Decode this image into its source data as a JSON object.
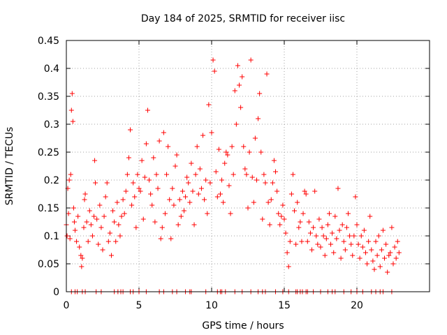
{
  "chart_data": {
    "type": "scatter",
    "title": "Day 184 of 2025, SRMTID for receiver iisc",
    "xlabel": "GPS time / hours",
    "ylabel": "SRMTID / TECUs",
    "xlim": [
      0,
      25
    ],
    "ylim": [
      0,
      0.45
    ],
    "x_ticks": [
      0,
      5,
      10,
      15,
      20
    ],
    "x_tick_labels": [
      "0",
      "5",
      "10",
      "15",
      "20"
    ],
    "y_ticks": [
      0,
      0.05,
      0.1,
      0.15,
      0.2,
      0.25,
      0.3,
      0.35,
      0.4,
      0.45
    ],
    "y_tick_labels": [
      "0",
      "0.05",
      "0.1",
      "0.15",
      "0.2",
      "0.25",
      "0.3",
      "0.35",
      "0.4",
      "0.45"
    ],
    "grid": true,
    "marker": "plus",
    "color": "#ff0000",
    "series": [
      {
        "name": "SRMTID",
        "points": [
          [
            0.0,
            0.12
          ],
          [
            0.05,
            0.1
          ],
          [
            0.1,
            0.185
          ],
          [
            0.15,
            0.14
          ],
          [
            0.2,
            0.2
          ],
          [
            0.25,
            0.095
          ],
          [
            0.3,
            0.21
          ],
          [
            0.35,
            0.325
          ],
          [
            0.4,
            0.355
          ],
          [
            0.45,
            0.305
          ],
          [
            0.5,
            0.15
          ],
          [
            0.55,
            0.125
          ],
          [
            0.6,
            0.11
          ],
          [
            0.7,
            0.09
          ],
          [
            0.8,
            0.135
          ],
          [
            0.9,
            0.08
          ],
          [
            1.0,
            0.065
          ],
          [
            1.05,
            0.045
          ],
          [
            1.1,
            0.06
          ],
          [
            1.2,
            0.115
          ],
          [
            1.25,
            0.165
          ],
          [
            1.3,
            0.175
          ],
          [
            1.4,
            0.125
          ],
          [
            1.5,
            0.09
          ],
          [
            1.6,
            0.145
          ],
          [
            1.7,
            0.12
          ],
          [
            1.8,
            0.1
          ],
          [
            1.9,
            0.135
          ],
          [
            1.95,
            0.235
          ],
          [
            2.0,
            0.195
          ],
          [
            2.1,
            0.13
          ],
          [
            2.2,
            0.085
          ],
          [
            2.3,
            0.155
          ],
          [
            2.4,
            0.115
          ],
          [
            2.5,
            0.075
          ],
          [
            2.6,
            0.135
          ],
          [
            2.7,
            0.17
          ],
          [
            2.8,
            0.195
          ],
          [
            2.9,
            0.09
          ],
          [
            3.0,
            0.105
          ],
          [
            3.1,
            0.065
          ],
          [
            3.2,
            0.145
          ],
          [
            3.3,
            0.125
          ],
          [
            3.4,
            0.09
          ],
          [
            3.5,
            0.16
          ],
          [
            3.6,
            0.12
          ],
          [
            3.7,
            0.1
          ],
          [
            3.8,
            0.135
          ],
          [
            3.9,
            0.165
          ],
          [
            4.0,
            0.14
          ],
          [
            4.1,
            0.18
          ],
          [
            4.2,
            0.21
          ],
          [
            4.3,
            0.24
          ],
          [
            4.4,
            0.29
          ],
          [
            4.5,
            0.155
          ],
          [
            4.6,
            0.195
          ],
          [
            4.7,
            0.17
          ],
          [
            4.8,
            0.115
          ],
          [
            4.9,
            0.21
          ],
          [
            5.0,
            0.185
          ],
          [
            5.1,
            0.18
          ],
          [
            5.2,
            0.235
          ],
          [
            5.3,
            0.13
          ],
          [
            5.4,
            0.205
          ],
          [
            5.5,
            0.265
          ],
          [
            5.6,
            0.325
          ],
          [
            5.7,
            0.2
          ],
          [
            5.8,
            0.175
          ],
          [
            5.9,
            0.155
          ],
          [
            6.0,
            0.24
          ],
          [
            6.1,
            0.125
          ],
          [
            6.2,
            0.21
          ],
          [
            6.3,
            0.185
          ],
          [
            6.4,
            0.27
          ],
          [
            6.5,
            0.095
          ],
          [
            6.6,
            0.115
          ],
          [
            6.7,
            0.285
          ],
          [
            6.8,
            0.14
          ],
          [
            6.9,
            0.21
          ],
          [
            7.0,
            0.26
          ],
          [
            7.1,
            0.165
          ],
          [
            7.2,
            0.095
          ],
          [
            7.3,
            0.185
          ],
          [
            7.4,
            0.155
          ],
          [
            7.5,
            0.225
          ],
          [
            7.6,
            0.245
          ],
          [
            7.7,
            0.12
          ],
          [
            7.8,
            0.165
          ],
          [
            7.9,
            0.135
          ],
          [
            8.0,
            0.18
          ],
          [
            8.1,
            0.145
          ],
          [
            8.2,
            0.17
          ],
          [
            8.3,
            0.205
          ],
          [
            8.4,
            0.195
          ],
          [
            8.5,
            0.16
          ],
          [
            8.6,
            0.23
          ],
          [
            8.7,
            0.18
          ],
          [
            8.8,
            0.12
          ],
          [
            8.9,
            0.21
          ],
          [
            9.0,
            0.26
          ],
          [
            9.1,
            0.175
          ],
          [
            9.2,
            0.22
          ],
          [
            9.3,
            0.185
          ],
          [
            9.4,
            0.28
          ],
          [
            9.5,
            0.165
          ],
          [
            9.6,
            0.2
          ],
          [
            9.7,
            0.14
          ],
          [
            9.8,
            0.335
          ],
          [
            9.9,
            0.195
          ],
          [
            10.0,
            0.285
          ],
          [
            10.1,
            0.415
          ],
          [
            10.2,
            0.395
          ],
          [
            10.3,
            0.215
          ],
          [
            10.4,
            0.17
          ],
          [
            10.5,
            0.255
          ],
          [
            10.6,
            0.175
          ],
          [
            10.7,
            0.2
          ],
          [
            10.8,
            0.16
          ],
          [
            10.9,
            0.23
          ],
          [
            11.0,
            0.25
          ],
          [
            11.1,
            0.245
          ],
          [
            11.2,
            0.19
          ],
          [
            11.3,
            0.14
          ],
          [
            11.4,
            0.26
          ],
          [
            11.5,
            0.21
          ],
          [
            11.6,
            0.36
          ],
          [
            11.7,
            0.3
          ],
          [
            11.8,
            0.405
          ],
          [
            11.9,
            0.37
          ],
          [
            12.0,
            0.33
          ],
          [
            12.1,
            0.385
          ],
          [
            12.2,
            0.26
          ],
          [
            12.3,
            0.22
          ],
          [
            12.4,
            0.21
          ],
          [
            12.5,
            0.15
          ],
          [
            12.6,
            0.25
          ],
          [
            12.7,
            0.415
          ],
          [
            12.8,
            0.205
          ],
          [
            12.9,
            0.16
          ],
          [
            13.0,
            0.275
          ],
          [
            13.1,
            0.2
          ],
          [
            13.2,
            0.31
          ],
          [
            13.3,
            0.355
          ],
          [
            13.4,
            0.25
          ],
          [
            13.5,
            0.13
          ],
          [
            13.6,
            0.21
          ],
          [
            13.7,
            0.195
          ],
          [
            13.8,
            0.39
          ],
          [
            13.9,
            0.16
          ],
          [
            14.0,
            0.12
          ],
          [
            14.1,
            0.165
          ],
          [
            14.2,
            0.195
          ],
          [
            14.3,
            0.235
          ],
          [
            14.4,
            0.215
          ],
          [
            14.5,
            0.18
          ],
          [
            14.6,
            0.14
          ],
          [
            14.7,
            0.12
          ],
          [
            14.8,
            0.135
          ],
          [
            14.9,
            0.155
          ],
          [
            15.0,
            0.13
          ],
          [
            15.1,
            0.105
          ],
          [
            15.2,
            0.07
          ],
          [
            15.3,
            0.045
          ],
          [
            15.4,
            0.09
          ],
          [
            15.5,
            0.175
          ],
          [
            15.6,
            0.21
          ],
          [
            15.7,
            0.145
          ],
          [
            15.8,
            0.085
          ],
          [
            15.9,
            0.16
          ],
          [
            16.0,
            0.115
          ],
          [
            16.1,
            0.125
          ],
          [
            16.2,
            0.09
          ],
          [
            16.3,
            0.14
          ],
          [
            16.4,
            0.18
          ],
          [
            16.5,
            0.175
          ],
          [
            16.6,
            0.09
          ],
          [
            16.7,
            0.125
          ],
          [
            16.8,
            0.105
          ],
          [
            16.9,
            0.075
          ],
          [
            17.0,
            0.115
          ],
          [
            17.1,
            0.18
          ],
          [
            17.2,
            0.1
          ],
          [
            17.3,
            0.085
          ],
          [
            17.4,
            0.13
          ],
          [
            17.5,
            0.08
          ],
          [
            17.6,
            0.115
          ],
          [
            17.7,
            0.1
          ],
          [
            17.8,
            0.065
          ],
          [
            17.9,
            0.095
          ],
          [
            18.0,
            0.12
          ],
          [
            18.1,
            0.14
          ],
          [
            18.2,
            0.085
          ],
          [
            18.3,
            0.105
          ],
          [
            18.4,
            0.07
          ],
          [
            18.5,
            0.135
          ],
          [
            18.6,
            0.095
          ],
          [
            18.7,
            0.185
          ],
          [
            18.8,
            0.11
          ],
          [
            18.9,
            0.06
          ],
          [
            19.0,
            0.12
          ],
          [
            19.1,
            0.09
          ],
          [
            19.2,
            0.075
          ],
          [
            19.3,
            0.115
          ],
          [
            19.4,
            0.14
          ],
          [
            19.5,
            0.1
          ],
          [
            19.6,
            0.085
          ],
          [
            19.7,
            0.065
          ],
          [
            19.8,
            0.1
          ],
          [
            19.9,
            0.17
          ],
          [
            20.0,
            0.12
          ],
          [
            20.1,
            0.085
          ],
          [
            20.2,
            0.06
          ],
          [
            20.3,
            0.1
          ],
          [
            20.4,
            0.08
          ],
          [
            20.5,
            0.11
          ],
          [
            20.6,
            0.07
          ],
          [
            20.7,
            0.05
          ],
          [
            20.8,
            0.09
          ],
          [
            20.9,
            0.135
          ],
          [
            21.0,
            0.075
          ],
          [
            21.1,
            0.055
          ],
          [
            21.2,
            0.04
          ],
          [
            21.3,
            0.09
          ],
          [
            21.4,
            0.065
          ],
          [
            21.5,
            0.1
          ],
          [
            21.6,
            0.045
          ],
          [
            21.7,
            0.075
          ],
          [
            21.8,
            0.11
          ],
          [
            21.9,
            0.06
          ],
          [
            22.0,
            0.085
          ],
          [
            22.1,
            0.035
          ],
          [
            22.2,
            0.065
          ],
          [
            22.3,
            0.07
          ],
          [
            22.4,
            0.115
          ],
          [
            22.5,
            0.05
          ],
          [
            22.6,
            0.08
          ],
          [
            22.7,
            0.06
          ],
          [
            22.8,
            0.09
          ],
          [
            22.9,
            0.07
          ]
        ],
        "zero_points": [
          0.35,
          0.6,
          0.75,
          1.1,
          1.3,
          2.05,
          2.4,
          3.3,
          3.55,
          3.75,
          3.9,
          4.4,
          4.6,
          5.0,
          5.5,
          6.4,
          6.7,
          7.3,
          7.6,
          8.2,
          8.5,
          8.6,
          9.6,
          10.4,
          10.6,
          10.7,
          10.95,
          11.6,
          12.1,
          12.7,
          13.2,
          13.5,
          13.7,
          14.4,
          14.9,
          15.3,
          15.8,
          15.9,
          16.1,
          16.25,
          16.5,
          16.6,
          17.0,
          17.5,
          18.0,
          18.3,
          18.5,
          19.1,
          19.6,
          20.0,
          20.4,
          21.0,
          21.3,
          21.6,
          21.8,
          22.4
        ]
      }
    ]
  }
}
